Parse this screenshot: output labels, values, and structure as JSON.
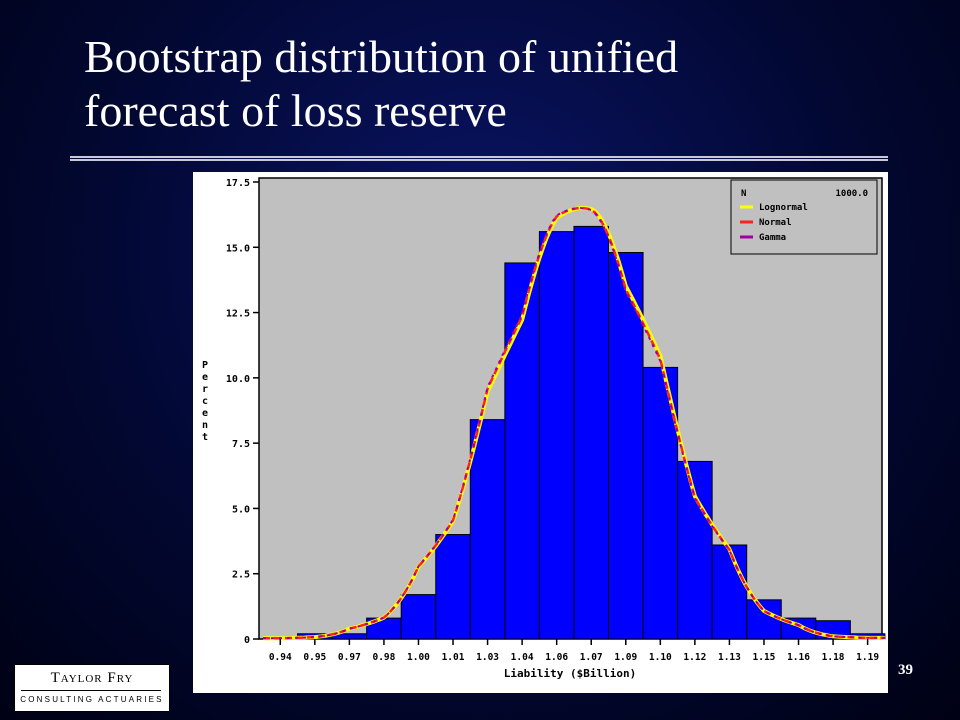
{
  "slide": {
    "title_line1": "Bootstrap distribution of unified",
    "title_line2": "forecast of loss reserve",
    "page_number": "39",
    "background_color": "#020833"
  },
  "logo": {
    "name": "Taylor Fry",
    "subtitle": "CONSULTING ACTUARIES"
  },
  "chart_data": {
    "type": "bar",
    "xlabel": "Liability ($Billion)",
    "ylabel": "Percent",
    "x_tick_labels": [
      "0.94",
      "0.95",
      "0.97",
      "0.98",
      "1.00",
      "1.01",
      "1.03",
      "1.04",
      "1.06",
      "1.07",
      "1.09",
      "1.10",
      "1.12",
      "1.13",
      "1.15",
      "1.16",
      "1.18",
      "1.19"
    ],
    "y_ticks": [
      0,
      2.5,
      5.0,
      7.5,
      10.0,
      12.5,
      15.0,
      17.5
    ],
    "y_tick_labels": [
      "0",
      "2.5",
      "5.0",
      "7.5",
      "10.0",
      "12.5",
      "15.0",
      "17.5"
    ],
    "ylim": [
      0,
      17.5
    ],
    "bin_centers": [
      0.94,
      0.95,
      0.97,
      0.98,
      1.0,
      1.01,
      1.03,
      1.04,
      1.06,
      1.07,
      1.09,
      1.1,
      1.12,
      1.13,
      1.15,
      1.16,
      1.18,
      1.19
    ],
    "values": [
      0,
      0.2,
      0.2,
      0.8,
      1.7,
      4.0,
      8.4,
      14.4,
      15.6,
      15.8,
      14.8,
      10.4,
      6.8,
      3.6,
      1.5,
      0.8,
      0.7,
      0.2
    ],
    "bar_color": "#0000ff",
    "plot_background": "#c0c0c0",
    "grid": false,
    "legend_position": "top-right",
    "legend": {
      "n_label": "N",
      "n_value": "1000.0",
      "entries": [
        {
          "name": "Lognormal",
          "color": "#ffff00"
        },
        {
          "name": "Normal",
          "color": "#ff2020"
        },
        {
          "name": "Gamma",
          "color": "#a000a0"
        }
      ]
    },
    "fitted_curves": {
      "peak_percent": 16.5,
      "mean": 1.067,
      "sd": 0.0355
    }
  }
}
